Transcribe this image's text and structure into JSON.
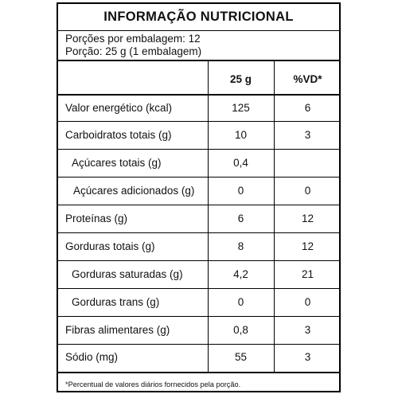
{
  "title": "INFORMAÇÃO NUTRICIONAL",
  "portions_per_package": "Porções por embalagem: 12",
  "portion_size": "Porção: 25 g (1 embalagem)",
  "header": {
    "col_amount": "25 g",
    "col_vd": "%VD*"
  },
  "rows": [
    {
      "label": "Valor energético (kcal)",
      "amount": "125",
      "vd": "6"
    },
    {
      "label": "Carboidratos totais (g)",
      "amount": "10",
      "vd": "3"
    },
    {
      "label": "Açúcares totais (g)",
      "amount": "0,4",
      "vd": ""
    },
    {
      "label": "Açúcares adicionados (g)",
      "amount": "0",
      "vd": "0"
    },
    {
      "label": "Proteínas (g)",
      "amount": "6",
      "vd": "12"
    },
    {
      "label": "Gorduras totais (g)",
      "amount": "8",
      "vd": "12"
    },
    {
      "label": "Gorduras saturadas (g)",
      "amount": "4,2",
      "vd": "21"
    },
    {
      "label": "Gorduras trans (g)",
      "amount": "0",
      "vd": "0"
    },
    {
      "label": "Fibras alimentares (g)",
      "amount": "0,8",
      "vd": "3"
    },
    {
      "label": "Sódio (mg)",
      "amount": "55",
      "vd": "3"
    }
  ],
  "footnote": "*Percentual de valores diários fornecidos pela porção."
}
